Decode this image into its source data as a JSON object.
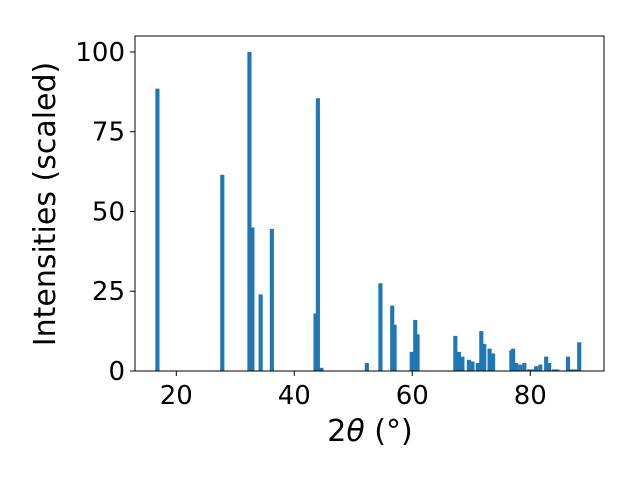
{
  "chart_data": {
    "type": "bar",
    "title": "",
    "xlabel_prefix": "2",
    "xlabel_theta": "θ",
    "xlabel_suffix": " (°)",
    "ylabel": "Intensities (scaled)",
    "xlim": [
      13.0,
      92.5
    ],
    "ylim": [
      0,
      105
    ],
    "xticks": [
      20,
      40,
      60,
      80
    ],
    "yticks": [
      0,
      25,
      50,
      75,
      100
    ],
    "grid": false,
    "legend": "none",
    "bar_color": "#1f77b4",
    "series": [
      {
        "x": [
          16.8,
          27.8,
          32.4,
          32.9,
          34.3,
          36.2,
          43.6,
          44.0,
          44.6,
          52.3,
          54.6,
          56.6,
          57.0,
          59.9,
          60.5,
          60.9,
          67.3,
          67.9,
          68.5,
          69.6,
          70.2,
          71.1,
          71.7,
          72.2,
          73.1,
          73.7,
          76.8,
          77.1,
          77.6,
          78.3,
          79.0,
          79.8,
          80.4,
          81.0,
          81.7,
          82.7,
          83.2,
          84.0,
          84.6,
          86.4,
          86.9,
          87.6,
          88.3
        ],
        "values": [
          88.5,
          61.5,
          100,
          45,
          24,
          44.5,
          18,
          85.5,
          1,
          2.5,
          27.5,
          20.5,
          14.5,
          6,
          16,
          11.5,
          11,
          6,
          4.5,
          3.5,
          3,
          2.5,
          12.5,
          8.5,
          7,
          5.5,
          6.5,
          7,
          2.5,
          2,
          2.5,
          0.5,
          0.5,
          1.5,
          2,
          4.5,
          2.5,
          0.5,
          0.5,
          4.5,
          0.5,
          0.5,
          9
        ]
      }
    ]
  }
}
